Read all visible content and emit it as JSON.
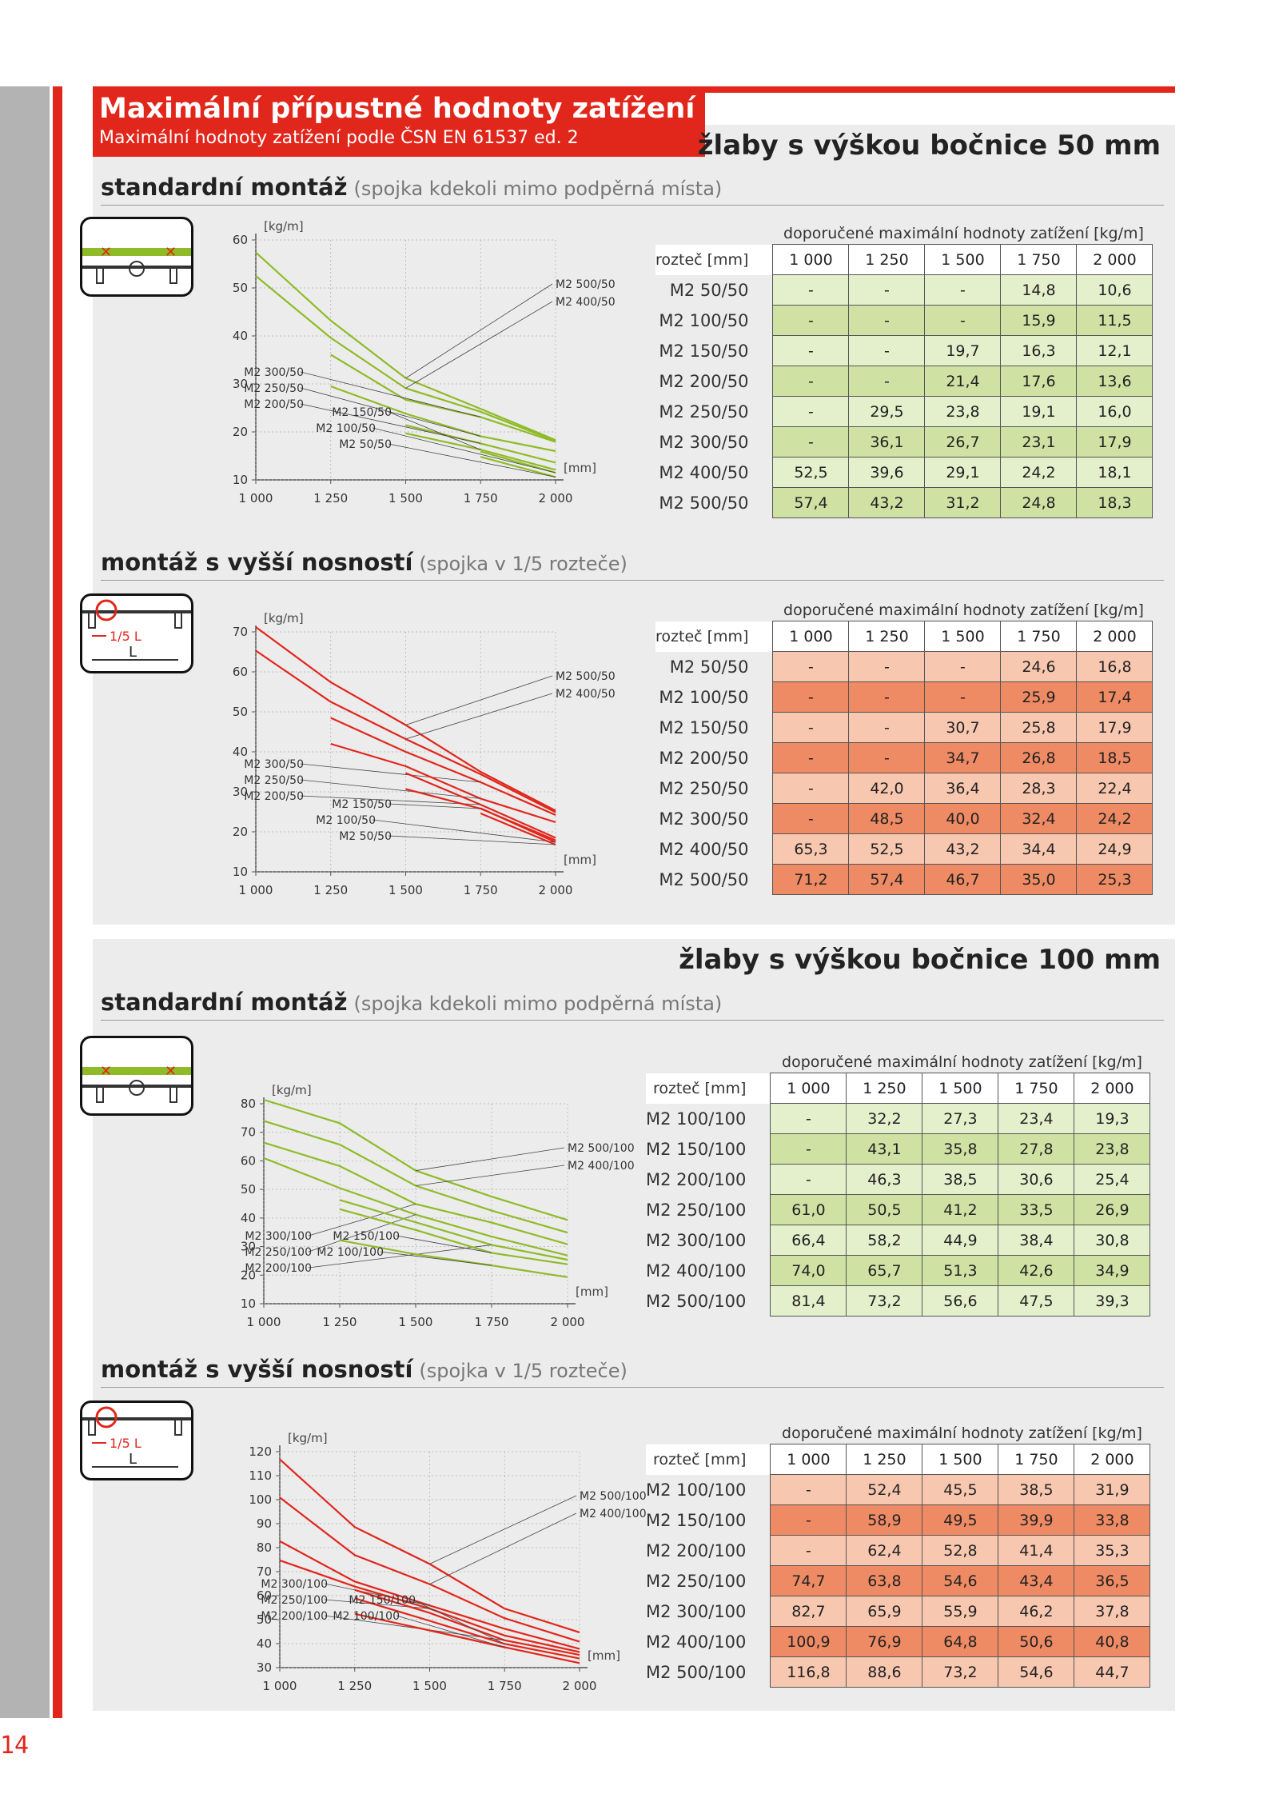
{
  "header": {
    "title": "Maximální přípustné hodnoty zatížení",
    "subtitle": "Maximální hodnoty zatížení podle ČSN EN 61537 ed. 2"
  },
  "page_number": "14",
  "common": {
    "table_caption": "doporučené maximální hodnoty zatížení [kg/m]",
    "row_header": "rozteč [mm]",
    "cols": [
      "1 000",
      "1 250",
      "1 500",
      "1 750",
      "2 000"
    ],
    "y_unit": "[kg/m]",
    "x_unit": "[mm]"
  },
  "sections": [
    {
      "title": "žlaby s výškou bočnice 50 mm",
      "std": {
        "heading": "standardní montáž",
        "note": "(spojka kdekoli mimo podpěrná místa)"
      },
      "high": {
        "heading": "montáž s vyšší nosností",
        "note": "(spojka v 1/5 rozteče)"
      }
    },
    {
      "title": "žlaby s výškou bočnice 100 mm",
      "std": {
        "heading": "standardní montáž",
        "note": "(spojka kdekoli mimo podpěrná místa)"
      },
      "high": {
        "heading": "montáž s vyšší nosností",
        "note": "(spojka v 1/5 rozteče)"
      }
    }
  ],
  "icon_labels": {
    "fifth": "1/5 L",
    "L": "L"
  },
  "colors": {
    "red": "#e1261c",
    "green": "#8fbb28",
    "green_light": "#e4efcb",
    "green_dark": "#cfe2a3",
    "red_light": "#f8c7b0",
    "red_dark": "#ee8a64"
  },
  "tables": [
    {
      "rows": [
        [
          "M2 50/50",
          "-",
          "-",
          "-",
          "14,8",
          "10,6"
        ],
        [
          "M2 100/50",
          "-",
          "-",
          "-",
          "15,9",
          "11,5"
        ],
        [
          "M2 150/50",
          "-",
          "-",
          "19,7",
          "16,3",
          "12,1"
        ],
        [
          "M2 200/50",
          "-",
          "-",
          "21,4",
          "17,6",
          "13,6"
        ],
        [
          "M2 250/50",
          "-",
          "29,5",
          "23,8",
          "19,1",
          "16,0"
        ],
        [
          "M2 300/50",
          "-",
          "36,1",
          "26,7",
          "23,1",
          "17,9"
        ],
        [
          "M2 400/50",
          "52,5",
          "39,6",
          "29,1",
          "24,2",
          "18,1"
        ],
        [
          "M2 500/50",
          "57,4",
          "43,2",
          "31,2",
          "24,8",
          "18,3"
        ]
      ]
    },
    {
      "rows": [
        [
          "M2 50/50",
          "-",
          "-",
          "-",
          "24,6",
          "16,8"
        ],
        [
          "M2 100/50",
          "-",
          "-",
          "-",
          "25,9",
          "17,4"
        ],
        [
          "M2 150/50",
          "-",
          "-",
          "30,7",
          "25,8",
          "17,9"
        ],
        [
          "M2 200/50",
          "-",
          "-",
          "34,7",
          "26,8",
          "18,5"
        ],
        [
          "M2 250/50",
          "-",
          "42,0",
          "36,4",
          "28,3",
          "22,4"
        ],
        [
          "M2 300/50",
          "-",
          "48,5",
          "40,0",
          "32,4",
          "24,2"
        ],
        [
          "M2 400/50",
          "65,3",
          "52,5",
          "43,2",
          "34,4",
          "24,9"
        ],
        [
          "M2 500/50",
          "71,2",
          "57,4",
          "46,7",
          "35,0",
          "25,3"
        ]
      ]
    },
    {
      "rows": [
        [
          "M2 100/100",
          "-",
          "32,2",
          "27,3",
          "23,4",
          "19,3"
        ],
        [
          "M2 150/100",
          "-",
          "43,1",
          "35,8",
          "27,8",
          "23,8"
        ],
        [
          "M2 200/100",
          "-",
          "46,3",
          "38,5",
          "30,6",
          "25,4"
        ],
        [
          "M2 250/100",
          "61,0",
          "50,5",
          "41,2",
          "33,5",
          "26,9"
        ],
        [
          "M2 300/100",
          "66,4",
          "58,2",
          "44,9",
          "38,4",
          "30,8"
        ],
        [
          "M2 400/100",
          "74,0",
          "65,7",
          "51,3",
          "42,6",
          "34,9"
        ],
        [
          "M2 500/100",
          "81,4",
          "73,2",
          "56,6",
          "47,5",
          "39,3"
        ]
      ]
    },
    {
      "rows": [
        [
          "M2 100/100",
          "-",
          "52,4",
          "45,5",
          "38,5",
          "31,9"
        ],
        [
          "M2 150/100",
          "-",
          "58,9",
          "49,5",
          "39,9",
          "33,8"
        ],
        [
          "M2 200/100",
          "-",
          "62,4",
          "52,8",
          "41,4",
          "35,3"
        ],
        [
          "M2 250/100",
          "74,7",
          "63,8",
          "54,6",
          "43,4",
          "36,5"
        ],
        [
          "M2 300/100",
          "82,7",
          "65,9",
          "55,9",
          "46,2",
          "37,8"
        ],
        [
          "M2 400/100",
          "100,9",
          "76,9",
          "64,8",
          "50,6",
          "40,8"
        ],
        [
          "M2 500/100",
          "116,8",
          "88,6",
          "73,2",
          "54,6",
          "44,7"
        ]
      ]
    }
  ],
  "chart_data": [
    {
      "type": "line",
      "x": [
        1000,
        1250,
        1500,
        1750,
        2000
      ],
      "ylim": [
        10,
        60
      ],
      "yticks": [
        10,
        20,
        30,
        40,
        50,
        60
      ],
      "color": "green",
      "series": [
        {
          "name": "M2 500/50",
          "values": [
            57.4,
            43.2,
            31.2,
            24.8,
            18.3
          ]
        },
        {
          "name": "M2 400/50",
          "values": [
            52.5,
            39.6,
            29.1,
            24.2,
            18.1
          ]
        },
        {
          "name": "M2 300/50",
          "values": [
            null,
            36.1,
            26.7,
            23.1,
            17.9
          ]
        },
        {
          "name": "M2 250/50",
          "values": [
            null,
            29.5,
            23.8,
            19.1,
            16.0
          ]
        },
        {
          "name": "M2 200/50",
          "values": [
            null,
            null,
            21.4,
            17.6,
            13.6
          ]
        },
        {
          "name": "M2 150/50",
          "values": [
            null,
            null,
            19.7,
            16.3,
            12.1
          ]
        },
        {
          "name": "M2 100/50",
          "values": [
            null,
            null,
            null,
            15.9,
            11.5
          ]
        },
        {
          "name": "M2 50/50",
          "values": [
            null,
            null,
            null,
            14.8,
            10.6
          ]
        }
      ]
    },
    {
      "type": "line",
      "x": [
        1000,
        1250,
        1500,
        1750,
        2000
      ],
      "ylim": [
        10,
        70
      ],
      "yticks": [
        10,
        20,
        30,
        40,
        50,
        60,
        70
      ],
      "color": "red",
      "series": [
        {
          "name": "M2 500/50",
          "values": [
            71.2,
            57.4,
            46.7,
            35.0,
            25.3
          ]
        },
        {
          "name": "M2 400/50",
          "values": [
            65.3,
            52.5,
            43.2,
            34.4,
            24.9
          ]
        },
        {
          "name": "M2 300/50",
          "values": [
            null,
            48.5,
            40.0,
            32.4,
            24.2
          ]
        },
        {
          "name": "M2 250/50",
          "values": [
            null,
            42.0,
            36.4,
            28.3,
            22.4
          ]
        },
        {
          "name": "M2 200/50",
          "values": [
            null,
            null,
            34.7,
            26.8,
            18.5
          ]
        },
        {
          "name": "M2 150/50",
          "values": [
            null,
            null,
            30.7,
            25.8,
            17.9
          ]
        },
        {
          "name": "M2 100/50",
          "values": [
            null,
            null,
            null,
            25.9,
            17.4
          ]
        },
        {
          "name": "M2 50/50",
          "values": [
            null,
            null,
            null,
            24.6,
            16.8
          ]
        }
      ]
    },
    {
      "type": "line",
      "x": [
        1000,
        1250,
        1500,
        1750,
        2000
      ],
      "ylim": [
        10,
        80
      ],
      "yticks": [
        10,
        20,
        30,
        40,
        50,
        60,
        70,
        80
      ],
      "color": "green",
      "series": [
        {
          "name": "M2 500/100",
          "values": [
            81.4,
            73.2,
            56.6,
            47.5,
            39.3
          ]
        },
        {
          "name": "M2 400/100",
          "values": [
            74.0,
            65.7,
            51.3,
            42.6,
            34.9
          ]
        },
        {
          "name": "M2 300/100",
          "values": [
            66.4,
            58.2,
            44.9,
            38.4,
            30.8
          ]
        },
        {
          "name": "M2 250/100",
          "values": [
            61.0,
            50.5,
            41.2,
            33.5,
            26.9
          ]
        },
        {
          "name": "M2 200/100",
          "values": [
            null,
            46.3,
            38.5,
            30.6,
            25.4
          ]
        },
        {
          "name": "M2 150/100",
          "values": [
            null,
            43.1,
            35.8,
            27.8,
            23.8
          ]
        },
        {
          "name": "M2 100/100",
          "values": [
            null,
            32.2,
            27.3,
            23.4,
            19.3
          ]
        }
      ]
    },
    {
      "type": "line",
      "x": [
        1000,
        1250,
        1500,
        1750,
        2000
      ],
      "ylim": [
        30,
        120
      ],
      "yticks": [
        30,
        40,
        50,
        60,
        70,
        80,
        90,
        100,
        110,
        120
      ],
      "color": "red",
      "series": [
        {
          "name": "M2 500/100",
          "values": [
            116.8,
            88.6,
            73.2,
            54.6,
            44.7
          ]
        },
        {
          "name": "M2 400/100",
          "values": [
            100.9,
            76.9,
            64.8,
            50.6,
            40.8
          ]
        },
        {
          "name": "M2 300/100",
          "values": [
            82.7,
            65.9,
            55.9,
            46.2,
            37.8
          ]
        },
        {
          "name": "M2 250/100",
          "values": [
            74.7,
            63.8,
            54.6,
            43.4,
            36.5
          ]
        },
        {
          "name": "M2 200/100",
          "values": [
            null,
            62.4,
            52.8,
            41.4,
            35.3
          ]
        },
        {
          "name": "M2 150/100",
          "values": [
            null,
            58.9,
            49.5,
            39.9,
            33.8
          ]
        },
        {
          "name": "M2 100/100",
          "values": [
            null,
            52.4,
            45.5,
            38.5,
            31.9
          ]
        }
      ]
    }
  ]
}
